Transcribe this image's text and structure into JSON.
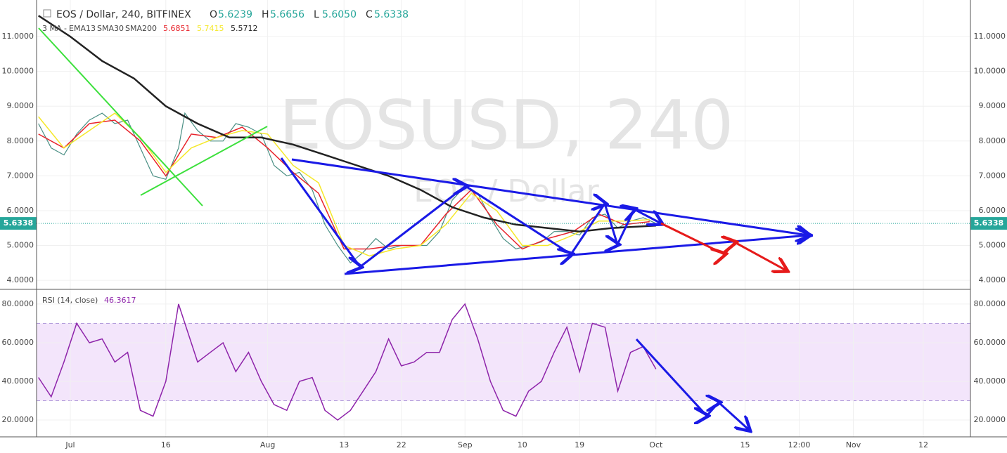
{
  "chart_data": [
    {
      "type": "line",
      "title": "EOS / Dollar, 240, BITFINEX",
      "watermark": "EOSUSD, 240",
      "watermark_subtitle": "EOS / Dollar",
      "ohlc": [
        {
          "label": "O",
          "value": "5.6239"
        },
        {
          "label": "H",
          "value": "5.6656"
        },
        {
          "label": "L",
          "value": "5.6050"
        },
        {
          "label": "C",
          "value": "5.6338"
        }
      ],
      "ma_prefix": "3 MA -",
      "xlim": [
        -5.3,
        141.4
      ],
      "ylim": [
        3.74,
        12.05
      ],
      "yticks": [
        {
          "value": 4,
          "label": "4.0000"
        },
        {
          "value": 5,
          "label": "5.0000"
        },
        {
          "value": 6,
          "label": "6.0000"
        },
        {
          "value": 7,
          "label": "7.0000"
        },
        {
          "value": 8,
          "label": "8.0000"
        },
        {
          "value": 9,
          "label": "9.0000"
        },
        {
          "value": 10,
          "label": "10.0000"
        },
        {
          "value": 11,
          "label": "11.0000"
        }
      ],
      "last_price": 5.6338,
      "price": {
        "color": "#4a8f84",
        "x": [
          -5,
          -3,
          -1,
          1,
          3,
          5,
          7,
          9,
          11,
          13,
          15,
          17,
          18,
          20,
          22,
          24,
          26,
          28,
          30,
          32,
          34,
          36,
          38,
          40,
          42,
          44,
          46,
          48,
          50,
          52,
          54,
          56,
          58,
          60,
          62,
          64,
          66,
          68,
          70,
          72,
          74,
          76,
          78,
          80,
          82,
          84,
          86,
          88,
          90,
          92
        ],
        "values": [
          8.5,
          7.8,
          7.6,
          8.2,
          8.6,
          8.8,
          8.5,
          8.6,
          7.8,
          7.0,
          6.9,
          7.8,
          8.8,
          8.3,
          8.0,
          8.0,
          8.5,
          8.4,
          8.2,
          7.3,
          7.0,
          7.1,
          6.6,
          5.6,
          5.0,
          4.5,
          4.8,
          5.2,
          4.9,
          5.0,
          5.0,
          5.0,
          5.4,
          6.3,
          6.7,
          6.5,
          5.8,
          5.2,
          4.9,
          5.0,
          5.1,
          5.4,
          5.4,
          5.3,
          5.8,
          5.9,
          5.5,
          5.7,
          5.8,
          5.6338
        ]
      },
      "series": [
        {
          "name": "EMA13",
          "color": "#e8232b",
          "last_value": 5.6851,
          "x": [
            -5,
            -1,
            3,
            7,
            11,
            15,
            19,
            23,
            27,
            31,
            35,
            39,
            43,
            47,
            51,
            55,
            59,
            63,
            67,
            71,
            75,
            79,
            83,
            87,
            91
          ],
          "values": [
            8.2,
            7.8,
            8.5,
            8.6,
            8.0,
            7.0,
            8.2,
            8.1,
            8.4,
            7.8,
            7.1,
            6.5,
            4.9,
            4.9,
            5.0,
            5.0,
            5.9,
            6.6,
            5.6,
            4.9,
            5.2,
            5.4,
            5.9,
            5.6,
            5.6851
          ]
        },
        {
          "name": "SMA30",
          "color": "#f5e82a",
          "last_value": 5.7415,
          "x": [
            -5,
            -1,
            3,
            7,
            11,
            15,
            19,
            23,
            27,
            31,
            35,
            39,
            43,
            47,
            51,
            55,
            59,
            63,
            67,
            71,
            75,
            79,
            83,
            87,
            91
          ],
          "values": [
            8.7,
            7.8,
            8.3,
            8.8,
            8.1,
            7.1,
            7.8,
            8.1,
            8.3,
            8.2,
            7.3,
            6.8,
            5.0,
            4.7,
            4.9,
            5.0,
            5.6,
            6.5,
            6.0,
            5.0,
            5.0,
            5.3,
            5.7,
            5.7,
            5.7415
          ]
        },
        {
          "name": "SMA200",
          "color": "#222222",
          "last_value": 5.5712,
          "x": [
            -5,
            0,
            5,
            10,
            15,
            20,
            25,
            30,
            35,
            40,
            45,
            50,
            55,
            60,
            65,
            70,
            75,
            80,
            85,
            92
          ],
          "values": [
            11.6,
            11.0,
            10.3,
            9.8,
            9.0,
            8.5,
            8.1,
            8.1,
            7.9,
            7.6,
            7.3,
            7.0,
            6.6,
            6.1,
            5.8,
            5.6,
            5.5,
            5.4,
            5.5,
            5.5712
          ]
        }
      ]
    },
    {
      "type": "line",
      "title": "RSI (14, close)",
      "last_value": 46.3617,
      "xlim": [
        -5.3,
        141.4
      ],
      "ylim": [
        11.3,
        87.6
      ],
      "band": [
        30,
        70
      ],
      "yticks": [
        {
          "value": 20,
          "label": "20.0000"
        },
        {
          "value": 40,
          "label": "40.0000"
        },
        {
          "value": 60,
          "label": "60.0000"
        },
        {
          "value": 80,
          "label": "80.0000"
        }
      ],
      "xticks": [
        {
          "value": 0,
          "label": "Jul"
        },
        {
          "value": 15,
          "label": "16"
        },
        {
          "value": 31,
          "label": "Aug"
        },
        {
          "value": 43,
          "label": "13"
        },
        {
          "value": 52,
          "label": "22"
        },
        {
          "value": 62,
          "label": "Sep"
        },
        {
          "value": 71,
          "label": "10"
        },
        {
          "value": 80,
          "label": "19"
        },
        {
          "value": 92,
          "label": "Oct"
        },
        {
          "value": 106,
          "label": "15"
        },
        {
          "value": 114.5,
          "label": "12:00"
        },
        {
          "value": 123,
          "label": "Nov"
        },
        {
          "value": 134,
          "label": "12"
        }
      ],
      "series": [
        {
          "color": "#8e24aa",
          "x": [
            -5,
            -3,
            -1,
            1,
            3,
            5,
            7,
            9,
            11,
            13,
            15,
            17,
            18,
            20,
            22,
            24,
            26,
            28,
            30,
            32,
            34,
            36,
            38,
            40,
            42,
            44,
            46,
            48,
            50,
            52,
            54,
            56,
            58,
            60,
            62,
            64,
            66,
            68,
            70,
            72,
            74,
            76,
            78,
            80,
            82,
            84,
            86,
            88,
            90,
            92
          ],
          "values": [
            42,
            32,
            50,
            70,
            60,
            62,
            50,
            55,
            25,
            22,
            40,
            80,
            70,
            50,
            55,
            60,
            45,
            55,
            40,
            28,
            25,
            40,
            42,
            25,
            20,
            25,
            35,
            45,
            62,
            48,
            50,
            55,
            55,
            72,
            80,
            62,
            40,
            25,
            22,
            35,
            40,
            55,
            68,
            45,
            70,
            68,
            35,
            55,
            58,
            46.3617
          ]
        }
      ]
    }
  ]
}
